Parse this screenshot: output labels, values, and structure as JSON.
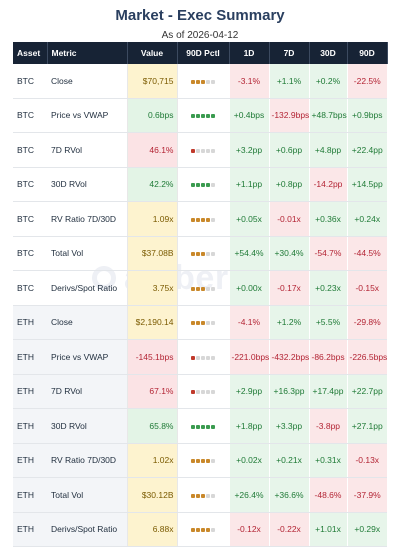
{
  "title": "Market - Exec Summary",
  "as_of": "As of 2026-04-12",
  "watermark": "amberdata",
  "headers": [
    "Asset",
    "Metric",
    "Value",
    "90D Pctl",
    "1D",
    "7D",
    "30D",
    "90D"
  ],
  "colors": {
    "header_bg": "#172335",
    "positive": "#1f7a36",
    "negative": "#b32434",
    "neutral_value": "#7a5a00",
    "pctl_green": "#3a9b4f",
    "pctl_amber": "#c9882a",
    "pctl_red": "#c0392b"
  },
  "rows": [
    {
      "asset": "BTC",
      "metric": "Close",
      "value": "$70,715",
      "value_tone": "yellow",
      "pctl_level": 3,
      "pctl_color": "amber",
      "c1": "-3.1%",
      "c7": "+1.1%",
      "c30": "+0.2%",
      "c90": "-22.5%"
    },
    {
      "asset": "BTC",
      "metric": "Price vs VWAP",
      "value": "0.6bps",
      "value_tone": "green",
      "pctl_level": 5,
      "pctl_color": "green",
      "c1": "+0.4bps",
      "c7": "-132.9bps",
      "c30": "+48.7bps",
      "c90": "+0.9bps"
    },
    {
      "asset": "BTC",
      "metric": "7D RVol",
      "value": "46.1%",
      "value_tone": "red",
      "pctl_level": 1,
      "pctl_color": "red",
      "c1": "+3.2pp",
      "c7": "+0.6pp",
      "c30": "+4.8pp",
      "c90": "+22.4pp"
    },
    {
      "asset": "BTC",
      "metric": "30D RVol",
      "value": "42.2%",
      "value_tone": "green",
      "pctl_level": 4,
      "pctl_color": "green",
      "c1": "+1.1pp",
      "c7": "+0.8pp",
      "c30": "-14.2pp",
      "c90": "+14.5pp"
    },
    {
      "asset": "BTC",
      "metric": "RV Ratio 7D/30D",
      "value": "1.09x",
      "value_tone": "yellow",
      "pctl_level": 4,
      "pctl_color": "amber",
      "c1": "+0.05x",
      "c7": "-0.01x",
      "c30": "+0.36x",
      "c90": "+0.24x"
    },
    {
      "asset": "BTC",
      "metric": "Total Vol",
      "value": "$37.08B",
      "value_tone": "yellow",
      "pctl_level": 3,
      "pctl_color": "amber",
      "c1": "+54.4%",
      "c7": "+30.4%",
      "c30": "-54.7%",
      "c90": "-44.5%"
    },
    {
      "asset": "BTC",
      "metric": "Derivs/Spot Ratio",
      "value": "3.75x",
      "value_tone": "yellow",
      "pctl_level": 3,
      "pctl_color": "amber",
      "c1": "+0.00x",
      "c7": "-0.17x",
      "c30": "+0.23x",
      "c90": "-0.15x"
    },
    {
      "asset": "ETH",
      "metric": "Close",
      "value": "$2,190.14",
      "value_tone": "yellow",
      "pctl_level": 3,
      "pctl_color": "amber",
      "c1": "-4.1%",
      "c7": "+1.2%",
      "c30": "+5.5%",
      "c90": "-29.8%"
    },
    {
      "asset": "ETH",
      "metric": "Price vs VWAP",
      "value": "-145.1bps",
      "value_tone": "red",
      "pctl_level": 1,
      "pctl_color": "red",
      "c1": "-221.0bps",
      "c7": "-432.2bps",
      "c30": "-86.2bps",
      "c90": "-226.5bps"
    },
    {
      "asset": "ETH",
      "metric": "7D RVol",
      "value": "67.1%",
      "value_tone": "red",
      "pctl_level": 1,
      "pctl_color": "red",
      "c1": "+2.9pp",
      "c7": "+16.3pp",
      "c30": "+17.4pp",
      "c90": "+22.7pp"
    },
    {
      "asset": "ETH",
      "metric": "30D RVol",
      "value": "65.8%",
      "value_tone": "green",
      "pctl_level": 5,
      "pctl_color": "green",
      "c1": "+1.8pp",
      "c7": "+3.3pp",
      "c30": "-3.8pp",
      "c90": "+27.1pp"
    },
    {
      "asset": "ETH",
      "metric": "RV Ratio 7D/30D",
      "value": "1.02x",
      "value_tone": "yellow",
      "pctl_level": 4,
      "pctl_color": "amber",
      "c1": "+0.02x",
      "c7": "+0.21x",
      "c30": "+0.31x",
      "c90": "-0.13x"
    },
    {
      "asset": "ETH",
      "metric": "Total Vol",
      "value": "$30.12B",
      "value_tone": "yellow",
      "pctl_level": 3,
      "pctl_color": "amber",
      "c1": "+26.4%",
      "c7": "+36.6%",
      "c30": "-48.6%",
      "c90": "-37.9%"
    },
    {
      "asset": "ETH",
      "metric": "Derivs/Spot Ratio",
      "value": "6.88x",
      "value_tone": "yellow",
      "pctl_level": 4,
      "pctl_color": "amber",
      "c1": "-0.12x",
      "c7": "-0.22x",
      "c30": "+1.01x",
      "c90": "+0.29x"
    }
  ]
}
